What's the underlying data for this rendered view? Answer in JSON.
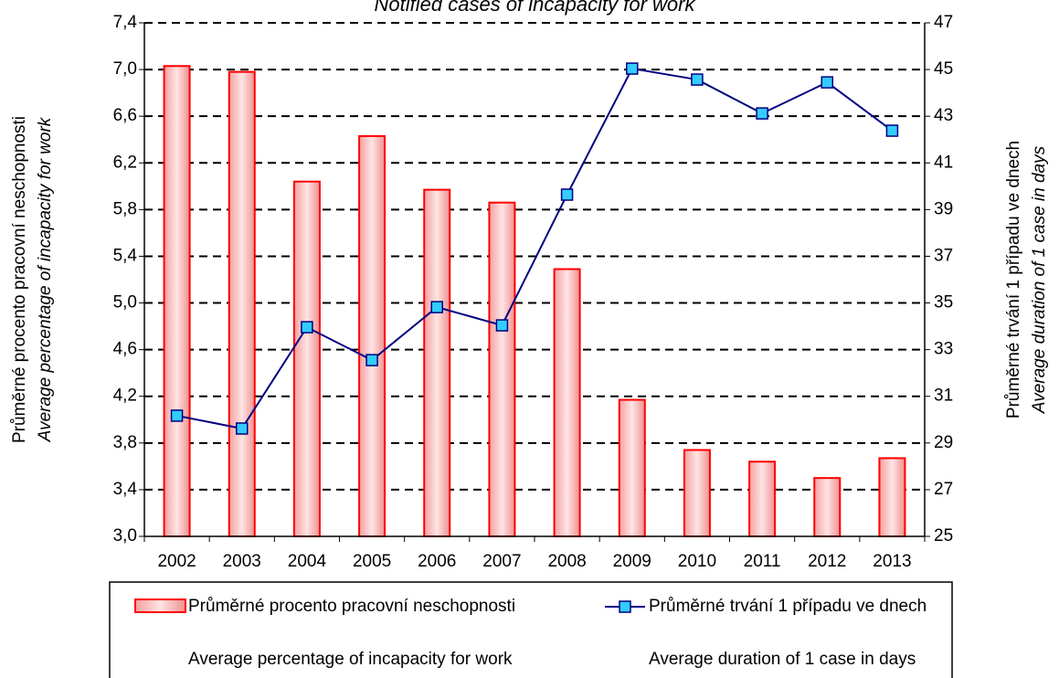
{
  "chart_data": {
    "type": "bar_line",
    "title": "Notified cases of incapacity for work",
    "categories": [
      "2002",
      "2003",
      "2004",
      "2005",
      "2006",
      "2007",
      "2008",
      "2009",
      "2010",
      "2011",
      "2012",
      "2013"
    ],
    "ylabel": [
      "Průměrné procento pracovní neschopnosti",
      "Average percentage of incapacity for work"
    ],
    "y2label": [
      "Průměrné trvání 1 případu ve dnech",
      "Average duration of 1 case in days"
    ],
    "series": [
      {
        "name": "Průměrné procento pracovní neschopnosti",
        "name_en": "Average percentage of incapacity for work",
        "type": "bar",
        "color": "#ff0000",
        "values": [
          7.03,
          6.98,
          6.04,
          6.43,
          5.97,
          5.86,
          5.29,
          4.17,
          3.74,
          3.64,
          3.5,
          3.67
        ]
      },
      {
        "name": "Průměrné trvání 1 případu ve dnech",
        "name_en": "Average duration of 1 case in days",
        "type": "line",
        "axis": "y2",
        "color": "#000080",
        "marker_color": "#33ccff",
        "values": [
          30.17,
          29.62,
          33.96,
          32.55,
          34.82,
          34.04,
          39.64,
          45.04,
          44.57,
          43.12,
          44.45,
          42.38
        ]
      }
    ],
    "ylim": [
      3.0,
      7.4
    ],
    "yticks": [
      {
        "value": 3.0,
        "label": "3,0"
      },
      {
        "value": 3.4,
        "label": "3,4"
      },
      {
        "value": 3.8,
        "label": "3,8"
      },
      {
        "value": 4.2,
        "label": "4,2"
      },
      {
        "value": 4.6,
        "label": "4,6"
      },
      {
        "value": 5.0,
        "label": "5,0"
      },
      {
        "value": 5.4,
        "label": "5,4"
      },
      {
        "value": 5.8,
        "label": "5,8"
      },
      {
        "value": 6.2,
        "label": "6,2"
      },
      {
        "value": 6.6,
        "label": "6,6"
      },
      {
        "value": 7.0,
        "label": "7,0"
      },
      {
        "value": 7.4,
        "label": "7,4"
      }
    ],
    "y2lim": [
      25,
      47
    ],
    "y2ticks": [
      25,
      27,
      29,
      31,
      33,
      35,
      37,
      39,
      41,
      43,
      45,
      47
    ],
    "grid": true
  }
}
